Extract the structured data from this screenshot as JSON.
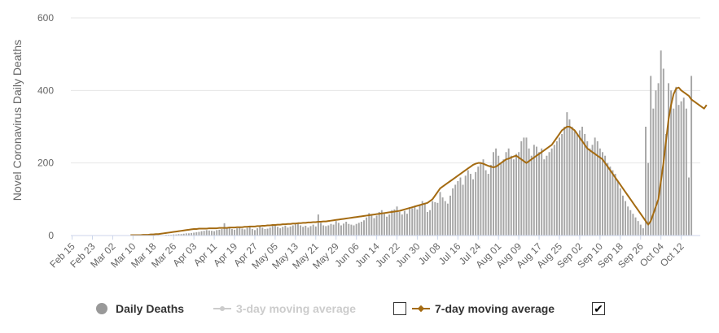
{
  "chart_data": {
    "type": "bar",
    "ylabel": "Novel Coronavirus Daily Deaths",
    "ylim": [
      0,
      600
    ],
    "y_ticks": [
      "0",
      "200",
      "400",
      "600"
    ],
    "x_range": [
      "Feb 15",
      "Oct 19"
    ],
    "x_tick_labels": [
      "Feb 15",
      "Feb 23",
      "Mar 02",
      "Mar 10",
      "Mar 18",
      "Mar 26",
      "Apr 03",
      "Apr 11",
      "Apr 19",
      "Apr 27",
      "May 05",
      "May 13",
      "May 21",
      "May 29",
      "Jun 06",
      "Jun 14",
      "Jun 22",
      "Jun 30",
      "Jul 08",
      "Jul 16",
      "Jul 24",
      "Aug 01",
      "Aug 09",
      "Aug 17",
      "Aug 25",
      "Sep 02",
      "Sep 10",
      "Sep 18",
      "Sep 26",
      "Oct 04",
      "Oct 12"
    ],
    "grid": true,
    "series": [
      {
        "name": "Daily Deaths",
        "type": "bar",
        "color": "#a6a6a6",
        "visible": true,
        "x_start": "Feb 15",
        "values": [
          0,
          0,
          0,
          0,
          0,
          0,
          0,
          0,
          0,
          0,
          0,
          0,
          0,
          0,
          0,
          0,
          0,
          0,
          0,
          0,
          0,
          0,
          0,
          0,
          0,
          0,
          0,
          0,
          0,
          0,
          0,
          0,
          1,
          1,
          1,
          1,
          1,
          2,
          2,
          2,
          3,
          3,
          4,
          4,
          5,
          6,
          6,
          7,
          8,
          9,
          10,
          12,
          13,
          15,
          14,
          13,
          12,
          15,
          16,
          18,
          34,
          20,
          22,
          18,
          16,
          20,
          22,
          19,
          17,
          21,
          24,
          18,
          15,
          20,
          25,
          22,
          18,
          19,
          22,
          28,
          30,
          24,
          20,
          24,
          27,
          22,
          25,
          28,
          32,
          35,
          28,
          24,
          27,
          22,
          26,
          30,
          25,
          58,
          35,
          28,
          26,
          28,
          32,
          30,
          40,
          35,
          28,
          33,
          38,
          32,
          30,
          28,
          32,
          35,
          38,
          42,
          50,
          62,
          58,
          48,
          55,
          65,
          70,
          60,
          52,
          58,
          70,
          72,
          80,
          65,
          58,
          68,
          60,
          78,
          75,
          82,
          72,
          85,
          95,
          90,
          65,
          70,
          95,
          92,
          90,
          120,
          105,
          95,
          88,
          110,
          130,
          140,
          150,
          160,
          140,
          165,
          180,
          170,
          155,
          175,
          190,
          200,
          210,
          180,
          170,
          195,
          230,
          240,
          220,
          200,
          210,
          230,
          240,
          220,
          210,
          225,
          230,
          260,
          270,
          270,
          240,
          220,
          250,
          245,
          230,
          240,
          210,
          220,
          230,
          240,
          250,
          260,
          270,
          280,
          300,
          340,
          320,
          300,
          290,
          280,
          290,
          300,
          280,
          260,
          240,
          250,
          270,
          260,
          240,
          230,
          220,
          200,
          190,
          180,
          170,
          150,
          130,
          110,
          95,
          80,
          70,
          60,
          50,
          40,
          30,
          20,
          300,
          200,
          440,
          350,
          400,
          420,
          510,
          460,
          280,
          420,
          400,
          350,
          410,
          360,
          370,
          380,
          350,
          160,
          440
        ]
      },
      {
        "name": "3-day moving average",
        "type": "line",
        "color": "#d0d0d0",
        "visible": false
      },
      {
        "name": "7-day moving average",
        "type": "line",
        "color": "#a46b12",
        "visible": true,
        "x_start": "Mar 09",
        "values": [
          1,
          1,
          1,
          1,
          1,
          2,
          2,
          2,
          3,
          3,
          4,
          4,
          5,
          6,
          7,
          8,
          9,
          10,
          11,
          12,
          13,
          14,
          15,
          16,
          17,
          18,
          18,
          19,
          19,
          19,
          19,
          20,
          20,
          20,
          20,
          21,
          21,
          21,
          21,
          22,
          22,
          22,
          23,
          23,
          23,
          24,
          24,
          25,
          25,
          25,
          26,
          26,
          27,
          27,
          28,
          28,
          29,
          29,
          30,
          30,
          31,
          31,
          32,
          32,
          33,
          33,
          34,
          34,
          35,
          35,
          36,
          36,
          37,
          37,
          38,
          38,
          39,
          39,
          40,
          41,
          42,
          43,
          44,
          45,
          46,
          47,
          48,
          49,
          50,
          51,
          52,
          53,
          54,
          55,
          56,
          57,
          58,
          59,
          60,
          61,
          62,
          63,
          64,
          65,
          66,
          67,
          68,
          70,
          72,
          74,
          76,
          78,
          80,
          82,
          84,
          86,
          88,
          90,
          95,
          100,
          110,
          120,
          130,
          135,
          140,
          145,
          150,
          155,
          160,
          165,
          170,
          175,
          180,
          185,
          190,
          195,
          198,
          200,
          200,
          198,
          195,
          192,
          190,
          188,
          190,
          195,
          200,
          205,
          210,
          212,
          215,
          218,
          220,
          215,
          210,
          205,
          200,
          205,
          210,
          215,
          220,
          225,
          230,
          235,
          240,
          245,
          250,
          260,
          270,
          280,
          290,
          295,
          300,
          300,
          295,
          290,
          280,
          270,
          260,
          250,
          240,
          235,
          230,
          225,
          220,
          215,
          210,
          200,
          190,
          180,
          170,
          160,
          150,
          140,
          130,
          120,
          110,
          100,
          90,
          80,
          70,
          60,
          50,
          40,
          30,
          40,
          60,
          80,
          100,
          150,
          200,
          260,
          320,
          360,
          390,
          405,
          408,
          400,
          395,
          390,
          385,
          375,
          370,
          365,
          360,
          355,
          350,
          360
        ]
      }
    ],
    "legend": {
      "placement": "bottom-center",
      "items": [
        {
          "label": "Daily Deaths",
          "active": true
        },
        {
          "label": "3-day moving average",
          "active": false
        },
        {
          "label": "7-day moving average",
          "active": true
        }
      ]
    }
  }
}
